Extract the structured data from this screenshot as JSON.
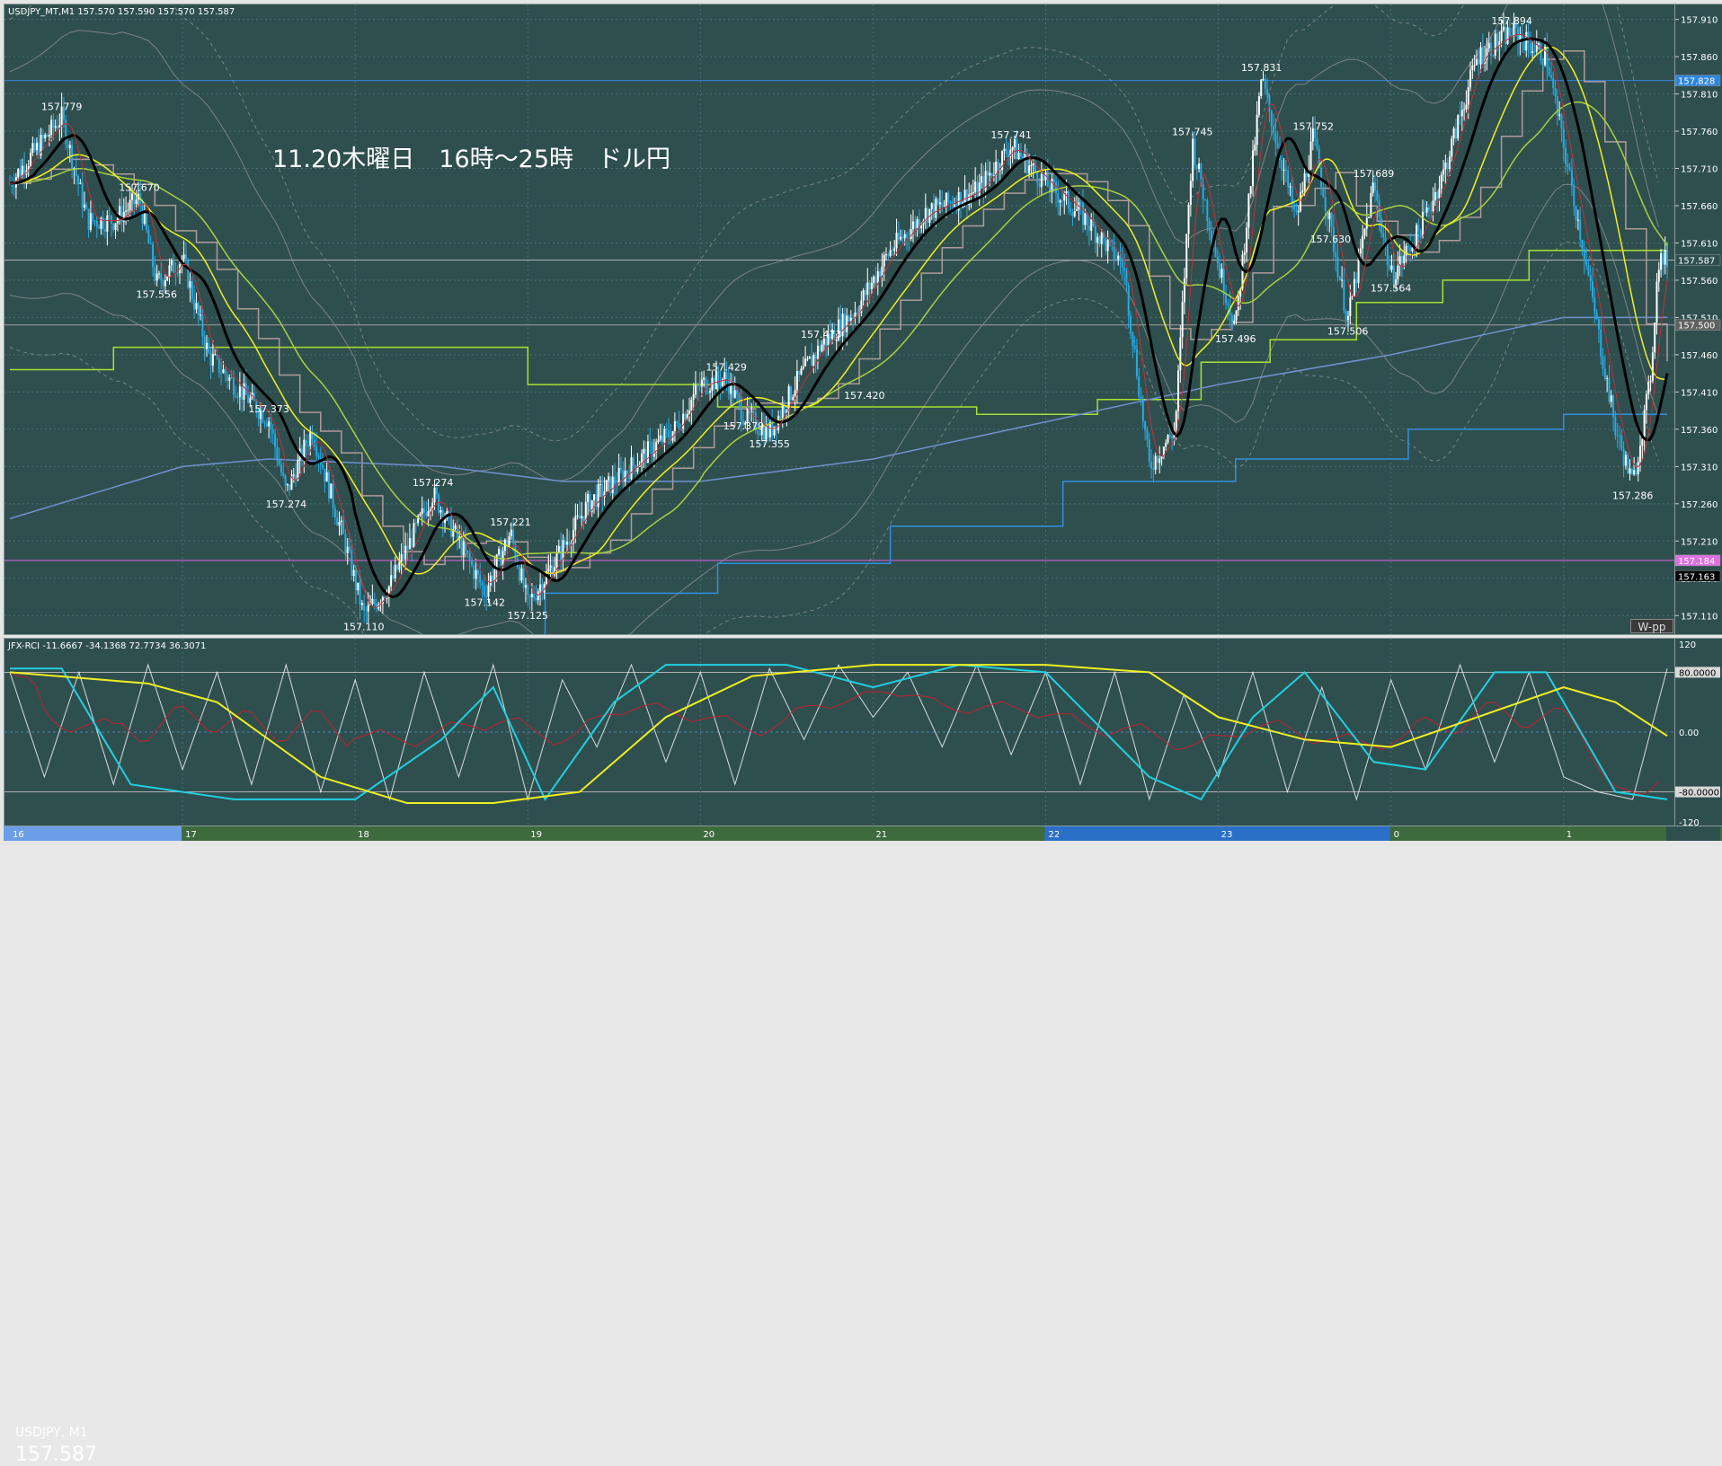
{
  "header": {
    "main_title": "USDJPY_MT,M1  157.570 157.590 157.570 157.587",
    "rci_title": "JFX-RCI -11.6667 -34.1368 72.7734 36.3071"
  },
  "annotation": "11.20木曜日　16時～25時　ドル円",
  "symbol": {
    "name": "USDJPY, M1",
    "last_price": "157.587"
  },
  "wpp_label": "W-pp",
  "colors": {
    "background": "#2f4f4f",
    "candle_up": "#ffffff",
    "candle_down": "#29a9e0",
    "ema_fast": "#c0303c",
    "ema_mid": "#000000",
    "ema_yellow": "#f0f020",
    "ema_green": "#a8d040",
    "ichimoku_step": "#b09a9a",
    "ma_blue": "#7090d0",
    "step_green": "#a8e030",
    "step_blue": "#3090e0",
    "bands": "#909090",
    "rci_short": "#ffffff",
    "rci_mid": "#c02030",
    "rci_cyan": "#20d0e0",
    "rci_yellow": "#f0f020",
    "hline_blue": "#3080e0",
    "hline_magenta": "#e060e0"
  },
  "price_axis": {
    "ticks": [
      "157.910",
      "157.860",
      "157.810",
      "157.760",
      "157.710",
      "157.660",
      "157.610",
      "157.560",
      "157.510",
      "157.460",
      "157.410",
      "157.360",
      "157.310",
      "157.260",
      "157.210",
      "157.160",
      "157.110"
    ],
    "tags": [
      {
        "label": "157.828",
        "value": 157.828,
        "bg": "#2e86e0",
        "fg": "#ffffff"
      },
      {
        "label": "157.587",
        "value": 157.587,
        "bg": "#2f4f4f",
        "fg": "#ffffff"
      },
      {
        "label": "157.500",
        "value": 157.5,
        "bg": "#606060",
        "fg": "#ffffff"
      },
      {
        "label": "157.184",
        "value": 157.184,
        "bg": "#e070e0",
        "fg": "#ffffff"
      },
      {
        "label": "157.163",
        "value": 157.163,
        "bg": "#000000",
        "fg": "#ffffff"
      }
    ]
  },
  "rci_axis": {
    "ticks": [
      {
        "label": "120",
        "value": 120
      },
      {
        "label": "80.0000",
        "value": 80
      },
      {
        "label": "0.00",
        "value": 0
      },
      {
        "label": "-80.0000",
        "value": -80
      },
      {
        "label": "-120",
        "value": -120
      }
    ]
  },
  "time_axis": {
    "labels": [
      "16",
      "17",
      "18",
      "19",
      "20",
      "21",
      "22",
      "23",
      "0",
      "1"
    ]
  },
  "chart_data": {
    "type": "line",
    "title": "USDJPY_MT,M1",
    "ylim": [
      157.085,
      157.93
    ],
    "x": [
      0,
      0.5,
      1,
      1.5,
      2,
      2.5,
      3,
      3.5,
      4,
      4.5,
      5,
      5.5,
      6,
      6.5,
      7,
      7.5,
      8,
      8.5,
      9,
      9.5
    ],
    "price_path_points": [
      [
        0,
        157.69
      ],
      [
        0.1,
        157.72
      ],
      [
        0.3,
        157.779
      ],
      [
        0.45,
        157.64
      ],
      [
        0.6,
        157.64
      ],
      [
        0.75,
        157.67
      ],
      [
        0.85,
        157.556
      ],
      [
        1.0,
        157.59
      ],
      [
        1.15,
        157.46
      ],
      [
        1.3,
        157.42
      ],
      [
        1.5,
        157.373
      ],
      [
        1.6,
        157.274
      ],
      [
        1.75,
        157.36
      ],
      [
        1.95,
        157.2
      ],
      [
        2.05,
        157.11
      ],
      [
        2.2,
        157.15
      ],
      [
        2.3,
        157.2
      ],
      [
        2.45,
        157.274
      ],
      [
        2.6,
        157.21
      ],
      [
        2.75,
        157.142
      ],
      [
        2.9,
        157.221
      ],
      [
        3.0,
        157.125
      ],
      [
        3.15,
        157.18
      ],
      [
        3.35,
        157.26
      ],
      [
        3.6,
        157.31
      ],
      [
        3.85,
        157.36
      ],
      [
        4.0,
        157.42
      ],
      [
        4.15,
        157.429
      ],
      [
        4.25,
        157.379
      ],
      [
        4.4,
        157.355
      ],
      [
        4.55,
        157.42
      ],
      [
        4.7,
        157.473
      ],
      [
        4.9,
        157.52
      ],
      [
        5.1,
        157.6
      ],
      [
        5.3,
        157.65
      ],
      [
        5.6,
        157.68
      ],
      [
        5.8,
        157.741
      ],
      [
        6.0,
        157.69
      ],
      [
        6.2,
        157.65
      ],
      [
        6.45,
        157.58
      ],
      [
        6.6,
        157.31
      ],
      [
        6.75,
        157.36
      ],
      [
        6.85,
        157.745
      ],
      [
        7.0,
        157.58
      ],
      [
        7.1,
        157.496
      ],
      [
        7.25,
        157.831
      ],
      [
        7.45,
        157.64
      ],
      [
        7.55,
        157.752
      ],
      [
        7.65,
        157.63
      ],
      [
        7.75,
        157.506
      ],
      [
        7.9,
        157.689
      ],
      [
        8.0,
        157.564
      ],
      [
        8.15,
        157.62
      ],
      [
        8.3,
        157.7
      ],
      [
        8.5,
        157.86
      ],
      [
        8.7,
        157.894
      ],
      [
        8.9,
        157.86
      ],
      [
        9.1,
        157.62
      ],
      [
        9.3,
        157.36
      ],
      [
        9.4,
        157.286
      ],
      [
        9.5,
        157.42
      ],
      [
        9.55,
        157.587
      ]
    ],
    "price_labels": [
      {
        "t": 0.3,
        "label": "157.779",
        "pos": "above"
      },
      {
        "t": 0.75,
        "label": "157.670",
        "pos": "above"
      },
      {
        "t": 0.85,
        "label": "157.556",
        "pos": "below"
      },
      {
        "t": 1.5,
        "label": "157.373",
        "pos": "above"
      },
      {
        "t": 1.6,
        "label": "157.274",
        "pos": "below"
      },
      {
        "t": 2.05,
        "label": "157.110",
        "pos": "below"
      },
      {
        "t": 2.45,
        "label": "157.274",
        "pos": "above"
      },
      {
        "t": 2.75,
        "label": "157.142",
        "pos": "below"
      },
      {
        "t": 2.9,
        "label": "157.221",
        "pos": "above"
      },
      {
        "t": 3.0,
        "label": "157.125",
        "pos": "below"
      },
      {
        "t": 4.15,
        "label": "157.429",
        "pos": "above"
      },
      {
        "t": 4.25,
        "label": "157.379",
        "pos": "below"
      },
      {
        "t": 4.4,
        "label": "157.355",
        "pos": "below"
      },
      {
        "t": 4.7,
        "label": "157.473",
        "pos": "above"
      },
      {
        "t": 4.95,
        "label": "157.420",
        "pos": "below"
      },
      {
        "t": 5.8,
        "label": "157.741",
        "pos": "above"
      },
      {
        "t": 6.85,
        "label": "157.745",
        "pos": "above"
      },
      {
        "t": 7.1,
        "label": "157.496",
        "pos": "below"
      },
      {
        "t": 7.25,
        "label": "157.831",
        "pos": "above"
      },
      {
        "t": 7.55,
        "label": "157.752",
        "pos": "above"
      },
      {
        "t": 7.65,
        "label": "157.630",
        "pos": "below"
      },
      {
        "t": 7.75,
        "label": "157.506",
        "pos": "below"
      },
      {
        "t": 7.9,
        "label": "157.689",
        "pos": "above"
      },
      {
        "t": 8.0,
        "label": "157.564",
        "pos": "below"
      },
      {
        "t": 8.7,
        "label": "157.894",
        "pos": "above"
      },
      {
        "t": 9.4,
        "label": "157.286",
        "pos": "below"
      }
    ],
    "horizontal_lines": [
      {
        "value": 157.828,
        "color": "#3080e0"
      },
      {
        "value": 157.587,
        "color": "#b0b0b0"
      },
      {
        "value": 157.5,
        "color": "#a0a0a0"
      },
      {
        "value": 157.184,
        "color": "#e060e0"
      }
    ],
    "step_green": [
      [
        0,
        157.44
      ],
      [
        0.6,
        157.47
      ],
      [
        1.4,
        157.47
      ],
      [
        3.0,
        157.42
      ],
      [
        4.1,
        157.39
      ],
      [
        5.6,
        157.38
      ],
      [
        6.3,
        157.4
      ],
      [
        6.9,
        157.45
      ],
      [
        7.3,
        157.48
      ],
      [
        7.8,
        157.53
      ],
      [
        8.3,
        157.56
      ],
      [
        8.8,
        157.6
      ],
      [
        9.6,
        157.61
      ]
    ],
    "step_blue": [
      [
        3.0,
        157.08
      ],
      [
        3.1,
        157.14
      ],
      [
        4.1,
        157.18
      ],
      [
        5.1,
        157.23
      ],
      [
        6.1,
        157.29
      ],
      [
        7.1,
        157.32
      ],
      [
        8.1,
        157.36
      ],
      [
        9.0,
        157.38
      ],
      [
        9.6,
        157.38
      ]
    ],
    "ma_blue": [
      [
        0,
        157.24
      ],
      [
        1.0,
        157.31
      ],
      [
        1.5,
        157.32
      ],
      [
        2.5,
        157.31
      ],
      [
        3.2,
        157.29
      ],
      [
        4.0,
        157.29
      ],
      [
        5.0,
        157.32
      ],
      [
        6.0,
        157.37
      ],
      [
        7.0,
        157.42
      ],
      [
        8.0,
        157.46
      ],
      [
        9.0,
        157.51
      ],
      [
        9.6,
        157.51
      ]
    ],
    "rci_ylim": [
      -125,
      125
    ],
    "rci_long_yellow": [
      [
        0,
        80
      ],
      [
        0.8,
        65
      ],
      [
        1.2,
        40
      ],
      [
        1.8,
        -60
      ],
      [
        2.3,
        -95
      ],
      [
        2.8,
        -95
      ],
      [
        3.3,
        -80
      ],
      [
        3.8,
        20
      ],
      [
        4.3,
        75
      ],
      [
        5.0,
        90
      ],
      [
        6.0,
        90
      ],
      [
        6.6,
        80
      ],
      [
        7.0,
        20
      ],
      [
        7.5,
        -10
      ],
      [
        8.0,
        -20
      ],
      [
        8.5,
        20
      ],
      [
        9.0,
        60
      ],
      [
        9.3,
        40
      ],
      [
        9.6,
        -5
      ]
    ],
    "rci_mid_cyan": [
      [
        0,
        85
      ],
      [
        0.3,
        85
      ],
      [
        0.7,
        -70
      ],
      [
        1.3,
        -90
      ],
      [
        2.0,
        -90
      ],
      [
        2.5,
        -10
      ],
      [
        2.8,
        60
      ],
      [
        3.1,
        -90
      ],
      [
        3.5,
        40
      ],
      [
        3.8,
        90
      ],
      [
        4.5,
        90
      ],
      [
        5.0,
        60
      ],
      [
        5.5,
        90
      ],
      [
        6.0,
        80
      ],
      [
        6.6,
        -60
      ],
      [
        6.9,
        -90
      ],
      [
        7.2,
        20
      ],
      [
        7.5,
        80
      ],
      [
        7.9,
        -40
      ],
      [
        8.2,
        -50
      ],
      [
        8.6,
        80
      ],
      [
        8.9,
        80
      ],
      [
        9.1,
        0
      ],
      [
        9.3,
        -80
      ],
      [
        9.6,
        -90
      ]
    ],
    "rci_short_white": [
      [
        0,
        80
      ],
      [
        0.2,
        -60
      ],
      [
        0.4,
        80
      ],
      [
        0.6,
        -70
      ],
      [
        0.8,
        90
      ],
      [
        1.0,
        -50
      ],
      [
        1.2,
        80
      ],
      [
        1.4,
        -70
      ],
      [
        1.6,
        90
      ],
      [
        1.8,
        -80
      ],
      [
        2.0,
        70
      ],
      [
        2.2,
        -90
      ],
      [
        2.4,
        80
      ],
      [
        2.6,
        -60
      ],
      [
        2.8,
        90
      ],
      [
        3.0,
        -90
      ],
      [
        3.2,
        70
      ],
      [
        3.4,
        -20
      ],
      [
        3.6,
        90
      ],
      [
        3.8,
        -40
      ],
      [
        4.0,
        80
      ],
      [
        4.2,
        -70
      ],
      [
        4.4,
        85
      ],
      [
        4.6,
        -10
      ],
      [
        4.8,
        90
      ],
      [
        5.0,
        20
      ],
      [
        5.2,
        80
      ],
      [
        5.4,
        -20
      ],
      [
        5.6,
        90
      ],
      [
        5.8,
        -30
      ],
      [
        6.0,
        80
      ],
      [
        6.2,
        -70
      ],
      [
        6.4,
        80
      ],
      [
        6.6,
        -90
      ],
      [
        6.8,
        50
      ],
      [
        7.0,
        -60
      ],
      [
        7.2,
        80
      ],
      [
        7.4,
        -80
      ],
      [
        7.6,
        60
      ],
      [
        7.8,
        -90
      ],
      [
        8.0,
        70
      ],
      [
        8.2,
        -50
      ],
      [
        8.4,
        90
      ],
      [
        8.6,
        -40
      ],
      [
        8.8,
        80
      ],
      [
        9.0,
        -60
      ],
      [
        9.2,
        -80
      ],
      [
        9.4,
        -90
      ],
      [
        9.6,
        85
      ]
    ]
  }
}
